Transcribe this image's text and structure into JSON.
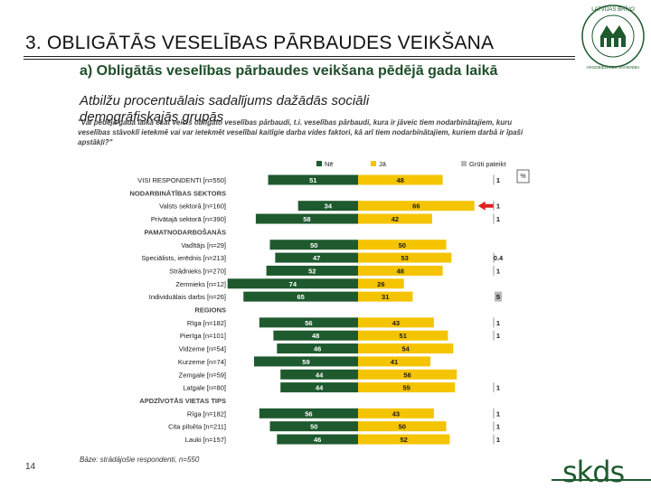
{
  "header": {
    "title": "3. OBLIGĀTĀS VESELĪBAS PĀRBAUDES VEIKŠANA",
    "logo_text_top": "LATVIJAS BRĪVO",
    "logo_text_bottom": "ARODBIEDRĪBU SAVIENĪBA"
  },
  "subtitle": "a) Obligātās veselības pārbaudes veikšana pēdējā gada laikā",
  "subtitle2": "Atbilžu procentuālais sadalījums dažādās sociāli demogrāfiskajās grupās",
  "question": "\"Vai pēdējā gada laikā esat veicis obligāto veselības pārbaudi, t.i. veselības pārbaudi, kura ir jāveic tiem nodarbinātajiem, kuru veselības stāvoklī ietekmē vai var ietekmēt veselībai kaitīgie darba vides faktori, kā arī tiem nodarbinātajiem, kuriem darbā ir īpaši apstākļi?\"",
  "footer": {
    "page_number": "14",
    "base": "Bāze: strādājošie respondenti, n=550",
    "brand": "skds"
  },
  "colors": {
    "ne": "#1e5a2e",
    "ja": "#f5c400",
    "grutiPateikt": "#b8b8b8",
    "arrow": "#e02020",
    "title_rule": "#222222"
  },
  "chart_data": {
    "type": "bar",
    "stacked": "diverging",
    "legend": [
      "Nē",
      "Jā",
      "Grūti pateikt"
    ],
    "legend_placement": "top-right",
    "unit_label": "%",
    "rows": [
      {
        "label": "VISI RESPONDENTI [n=550]",
        "ne": 51,
        "ja": 48,
        "gp": 1,
        "header": false
      },
      {
        "label": "NODARBINĀTĪBAS SEKTORS",
        "header": true
      },
      {
        "label": "Valsts sektorā [n=160]",
        "ne": 34,
        "ja": 66,
        "gp": 1,
        "header": false,
        "arrow": true
      },
      {
        "label": "Privātajā sektorā [n=390]",
        "ne": 58,
        "ja": 42,
        "gp": 1,
        "header": false
      },
      {
        "label": "PAMATNODARBOŠANĀS",
        "header": true
      },
      {
        "label": "Vadītājs [n=29]",
        "ne": 50,
        "ja": 50,
        "gp": null,
        "header": false
      },
      {
        "label": "Speciālists, ierēdnis [n=213]",
        "ne": 47,
        "ja": 53,
        "gp": 0.4,
        "header": false
      },
      {
        "label": "Strādnieks [n=270]",
        "ne": 52,
        "ja": 48,
        "gp": 1,
        "header": false
      },
      {
        "label": "Zemnieks [n=12]",
        "ne": 74,
        "ja": 26,
        "gp": null,
        "header": false
      },
      {
        "label": "Individuālais darbs [n=26]",
        "ne": 65,
        "ja": 31,
        "gp": 5,
        "header": false
      },
      {
        "label": "REGIONS",
        "header": true
      },
      {
        "label": "Rīga [n=182]",
        "ne": 56,
        "ja": 43,
        "gp": 1,
        "header": false
      },
      {
        "label": "Pierīga [n=101]",
        "ne": 48,
        "ja": 51,
        "gp": 1,
        "header": false
      },
      {
        "label": "Vidzeme [n=54]",
        "ne": 46,
        "ja": 54,
        "gp": null,
        "header": false
      },
      {
        "label": "Kurzeme [n=74]",
        "ne": 59,
        "ja": 41,
        "gp": null,
        "header": false
      },
      {
        "label": "Zemgale [n=59]",
        "ne": 44,
        "ja": 56,
        "gp": null,
        "header": false
      },
      {
        "label": "Latgale [n=80]",
        "ne": 44,
        "ja": 55,
        "gp": 1,
        "header": false
      },
      {
        "label": "APDZĪVOTĀS VIETAS TIPS",
        "header": true
      },
      {
        "label": "Rīga [n=182]",
        "ne": 56,
        "ja": 43,
        "gp": 1,
        "header": false
      },
      {
        "label": "Cita pilsēta [n=211]",
        "ne": 50,
        "ja": 50,
        "gp": 1,
        "header": false
      },
      {
        "label": "Lauki [n=157]",
        "ne": 46,
        "ja": 52,
        "gp": 1,
        "header": false
      }
    ]
  }
}
